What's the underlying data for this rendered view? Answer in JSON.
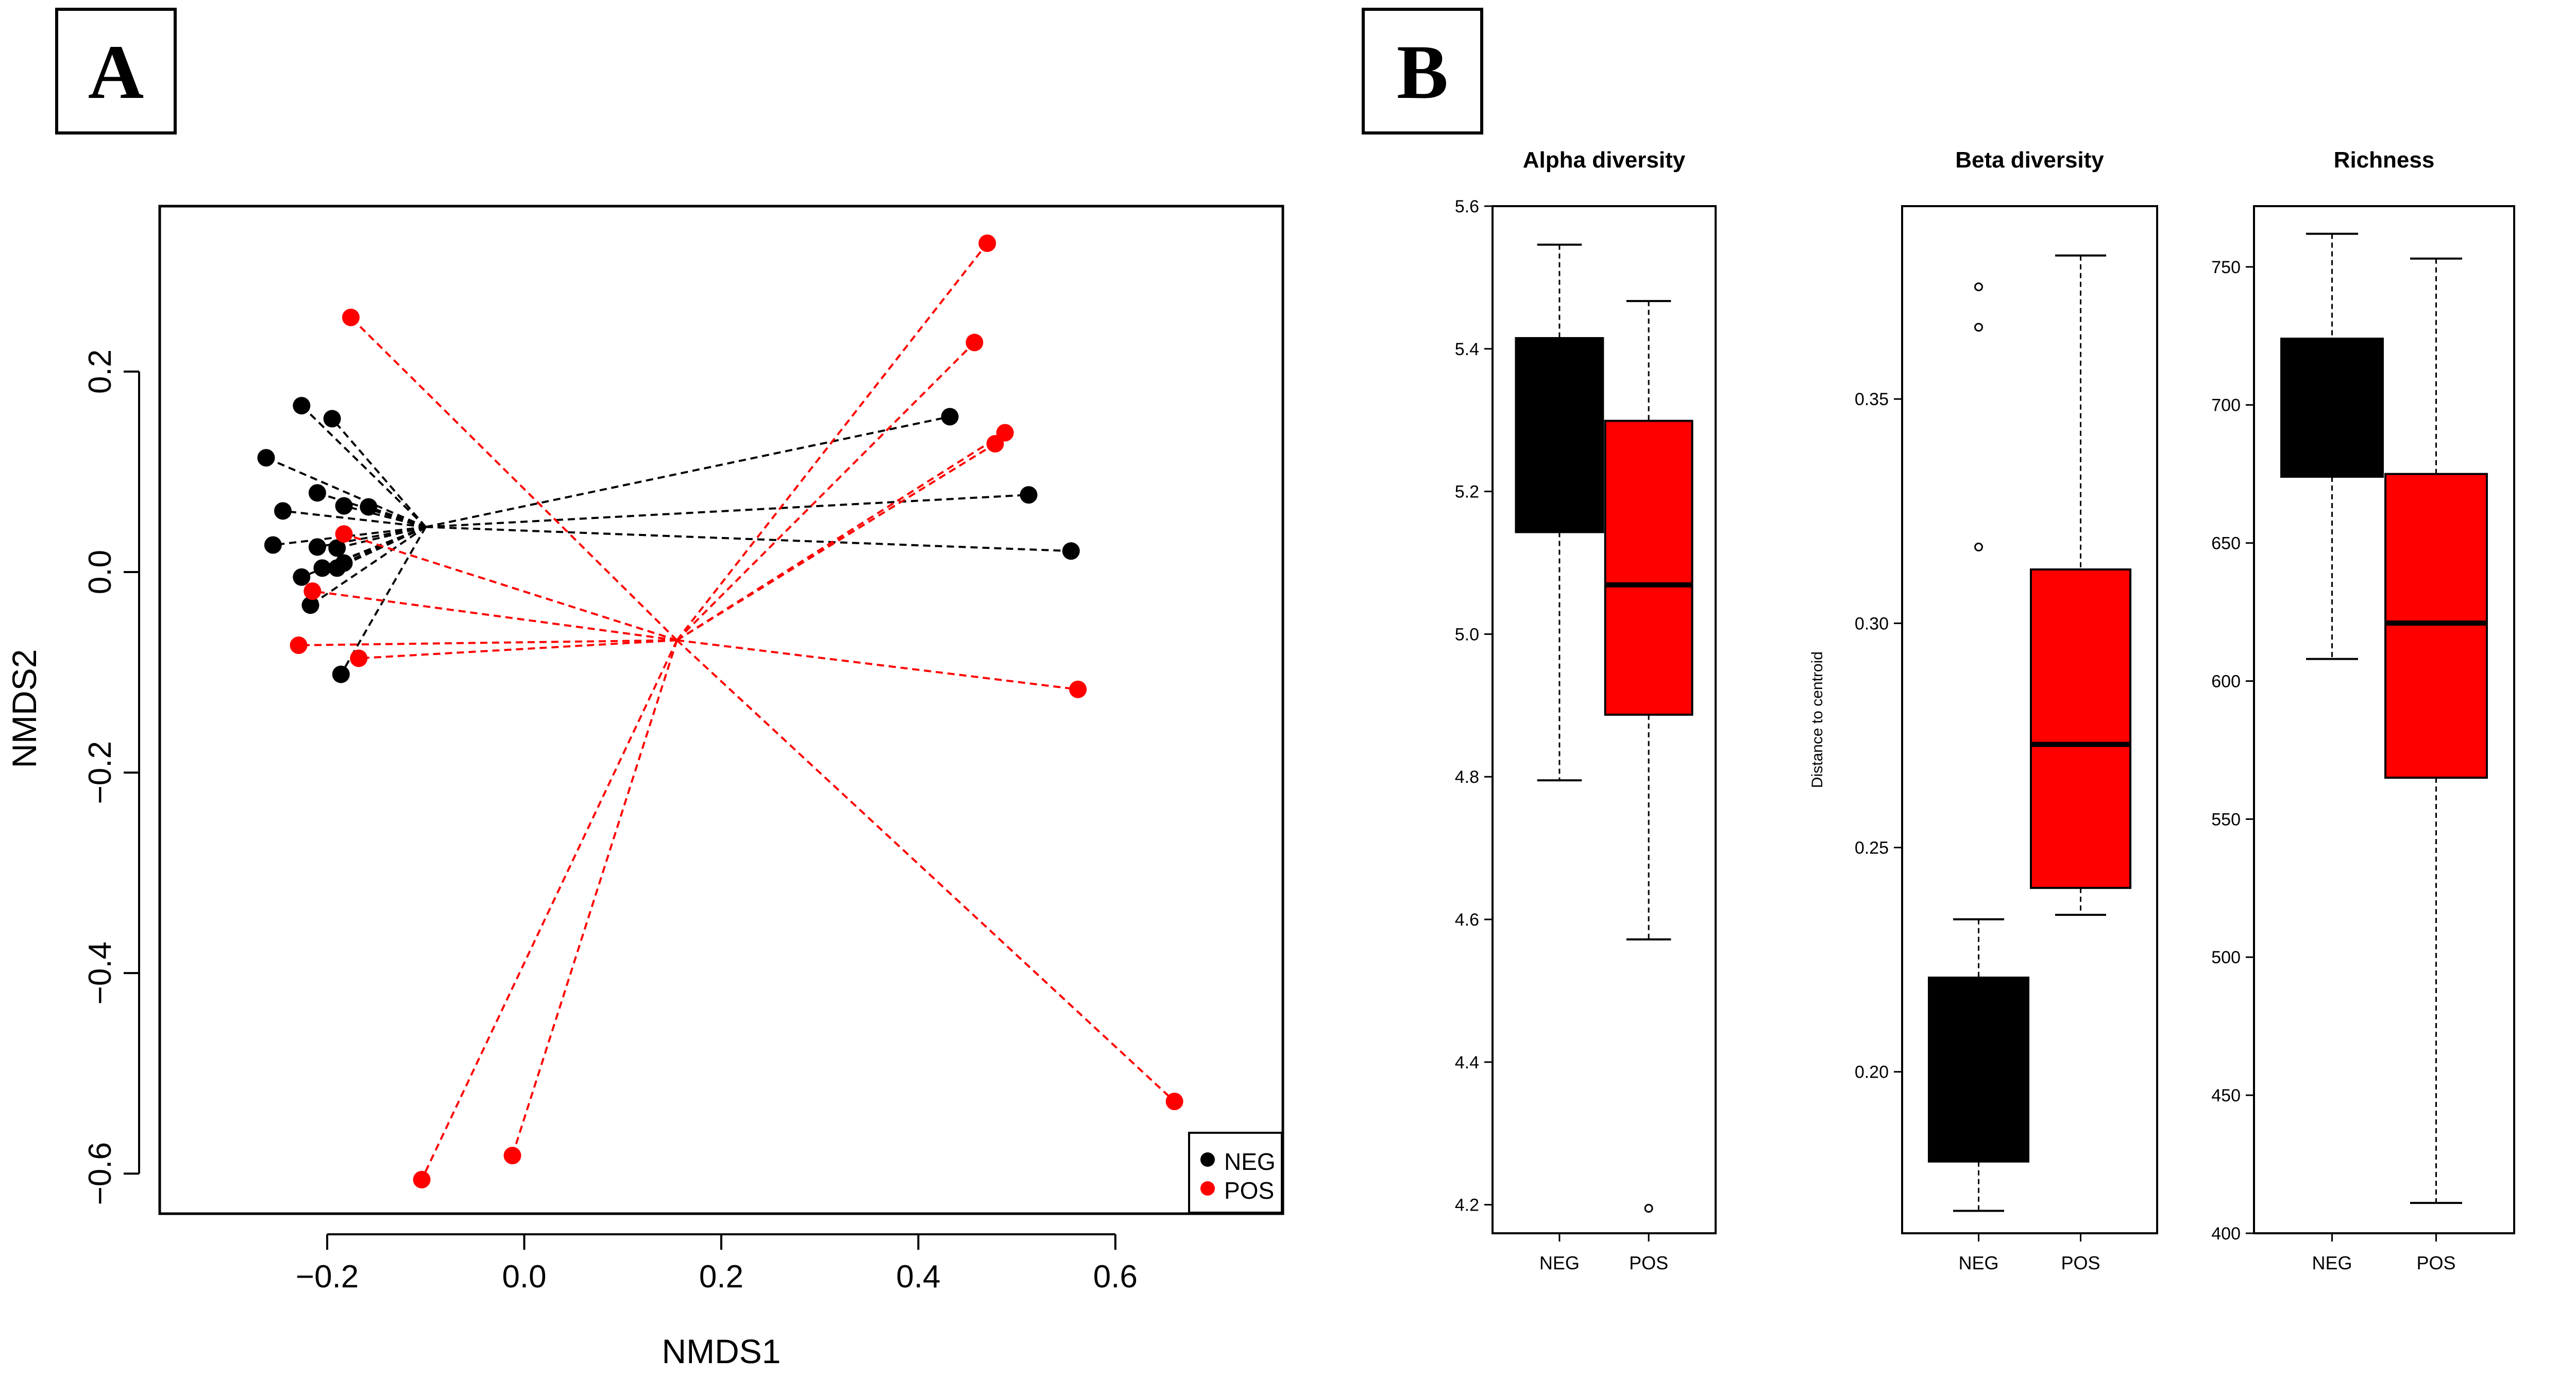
{
  "figure": {
    "panel_a_label": "A",
    "panel_b_label": "B"
  },
  "colors": {
    "neg": "#000000",
    "pos": "#ff0000",
    "axis": "#000000",
    "background": "#ffffff"
  },
  "chart_data": [
    {
      "id": "nmds",
      "type": "scatter",
      "title": "",
      "xlabel": "NMDS1",
      "ylabel": "NMDS2",
      "xlim": [
        -0.37,
        0.77
      ],
      "ylim": [
        -0.64,
        0.365
      ],
      "x_ticks": [
        -0.2,
        0.0,
        0.2,
        0.4,
        0.6
      ],
      "x_tick_labels": [
        "−0.2",
        "0.0",
        "0.2",
        "0.4",
        "0.6"
      ],
      "y_ticks": [
        -0.6,
        -0.4,
        -0.2,
        0.0,
        0.2
      ],
      "y_tick_labels": [
        "−0.6",
        "−0.4",
        "−0.2",
        "0.0",
        "0.2"
      ],
      "legend": {
        "position": "bottom-right",
        "entries": [
          "NEG",
          "POS"
        ]
      },
      "series": [
        {
          "name": "NEG",
          "color": "#000000",
          "centroid": [
            -0.1,
            0.045
          ],
          "points": [
            [
              -0.226,
              0.166
            ],
            [
              -0.195,
              0.153
            ],
            [
              -0.262,
              0.114
            ],
            [
              -0.21,
              0.079
            ],
            [
              -0.245,
              0.061
            ],
            [
              -0.183,
              0.066
            ],
            [
              -0.158,
              0.065
            ],
            [
              -0.255,
              0.027
            ],
            [
              -0.21,
              0.025
            ],
            [
              -0.19,
              0.024
            ],
            [
              -0.205,
              0.004
            ],
            [
              -0.19,
              0.004
            ],
            [
              -0.183,
              0.009
            ],
            [
              -0.226,
              -0.005
            ],
            [
              -0.217,
              -0.033
            ],
            [
              -0.186,
              -0.102
            ],
            [
              0.432,
              0.155
            ],
            [
              0.512,
              0.077
            ],
            [
              0.555,
              0.021
            ]
          ]
        },
        {
          "name": "POS",
          "color": "#ff0000",
          "centroid": [
            0.155,
            -0.068
          ],
          "points": [
            [
              -0.176,
              0.254
            ],
            [
              -0.183,
              0.038
            ],
            [
              -0.215,
              -0.019
            ],
            [
              -0.229,
              -0.073
            ],
            [
              -0.168,
              -0.086
            ],
            [
              0.47,
              0.328
            ],
            [
              0.457,
              0.229
            ],
            [
              0.488,
              0.139
            ],
            [
              0.478,
              0.128
            ],
            [
              0.562,
              -0.117
            ],
            [
              0.66,
              -0.528
            ],
            [
              -0.012,
              -0.582
            ],
            [
              -0.104,
              -0.606
            ]
          ]
        }
      ]
    },
    {
      "id": "alpha",
      "type": "box",
      "title": "Alpha diversity",
      "ylabel": "",
      "categories": [
        "NEG",
        "POS"
      ],
      "ylim": [
        4.16,
        5.6
      ],
      "y_ticks": [
        4.2,
        4.4,
        4.6,
        4.8,
        5.0,
        5.2,
        5.4,
        5.6
      ],
      "y_tick_labels": [
        "4.2",
        "4.4",
        "4.6",
        "4.8",
        "5.0",
        "5.2",
        "5.4",
        "5.6"
      ],
      "boxes": [
        {
          "name": "NEG",
          "color": "#000000",
          "whisker_low": 4.795,
          "q1": 5.143,
          "median": 5.26,
          "q3": 5.415,
          "whisker_high": 5.546,
          "outliers": []
        },
        {
          "name": "POS",
          "color": "#ff0000",
          "whisker_low": 4.572,
          "q1": 4.887,
          "median": 5.069,
          "q3": 5.299,
          "whisker_high": 5.467,
          "outliers": [
            4.195
          ]
        }
      ]
    },
    {
      "id": "beta",
      "type": "box",
      "title": "Beta diversity",
      "ylabel": "Distance to centroid",
      "categories": [
        "NEG",
        "POS"
      ],
      "ylim": [
        0.164,
        0.393
      ],
      "y_ticks": [
        0.2,
        0.25,
        0.3,
        0.35
      ],
      "y_tick_labels": [
        "0.20",
        "0.25",
        "0.30",
        "0.35"
      ],
      "boxes": [
        {
          "name": "NEG",
          "color": "#000000",
          "whisker_low": 0.169,
          "q1": 0.18,
          "median": 0.2,
          "q3": 0.221,
          "whisker_high": 0.234,
          "outliers": [
            0.317,
            0.366,
            0.375
          ]
        },
        {
          "name": "POS",
          "color": "#ff0000",
          "whisker_low": 0.235,
          "q1": 0.241,
          "median": 0.273,
          "q3": 0.312,
          "whisker_high": 0.382,
          "outliers": []
        }
      ]
    },
    {
      "id": "richness",
      "type": "box",
      "title": "Richness",
      "ylabel": "",
      "categories": [
        "NEG",
        "POS"
      ],
      "ylim": [
        400,
        772
      ],
      "y_ticks": [
        400,
        450,
        500,
        550,
        600,
        650,
        700,
        750
      ],
      "y_tick_labels": [
        "400",
        "450",
        "500",
        "550",
        "600",
        "650",
        "700",
        "750"
      ],
      "boxes": [
        {
          "name": "NEG",
          "color": "#000000",
          "whisker_low": 608,
          "q1": 674,
          "median": 700,
          "q3": 724,
          "whisker_high": 762,
          "outliers": []
        },
        {
          "name": "POS",
          "color": "#ff0000",
          "whisker_low": 411,
          "q1": 565,
          "median": 621,
          "q3": 675,
          "whisker_high": 753,
          "outliers": []
        }
      ]
    }
  ]
}
